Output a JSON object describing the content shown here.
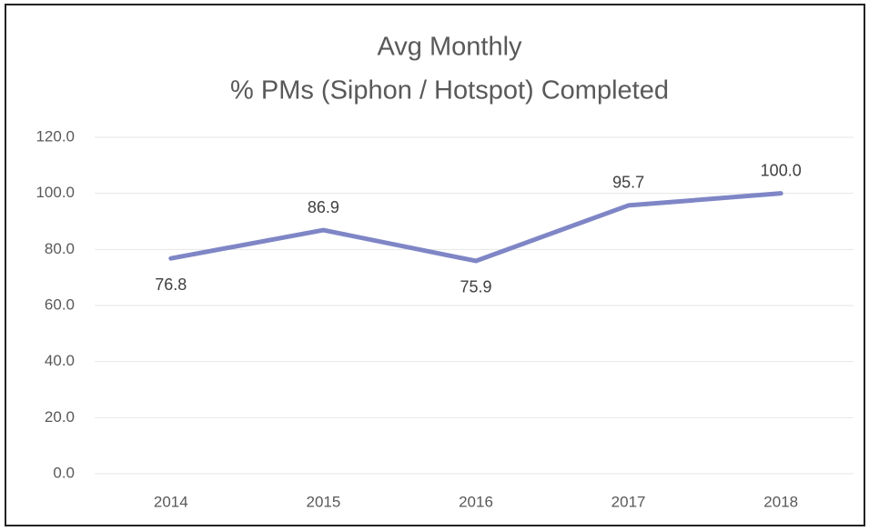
{
  "chart_data": {
    "type": "line",
    "title": "Avg Monthly",
    "subtitle": "% PMs (Siphon / Hotspot) Completed",
    "categories": [
      "2014",
      "2015",
      "2016",
      "2017",
      "2018"
    ],
    "series": [
      {
        "name": "% PMs Completed",
        "color": "#7f86c6",
        "values": [
          76.8,
          86.9,
          75.9,
          95.7,
          100
        ],
        "value_labels": [
          "76.8",
          "86.9",
          "75.9",
          "95.7",
          "100.0"
        ]
      }
    ],
    "ylim": [
      0,
      120
    ],
    "yticks": [
      {
        "value": 0,
        "label": "0.0"
      },
      {
        "value": 20,
        "label": "20.0"
      },
      {
        "value": 40,
        "label": "40.0"
      },
      {
        "value": 60,
        "label": "60.0"
      },
      {
        "value": 80,
        "label": "80.0"
      },
      {
        "value": 100,
        "label": "100.0"
      },
      {
        "value": 120,
        "label": "120.0"
      }
    ],
    "grid": true
  }
}
